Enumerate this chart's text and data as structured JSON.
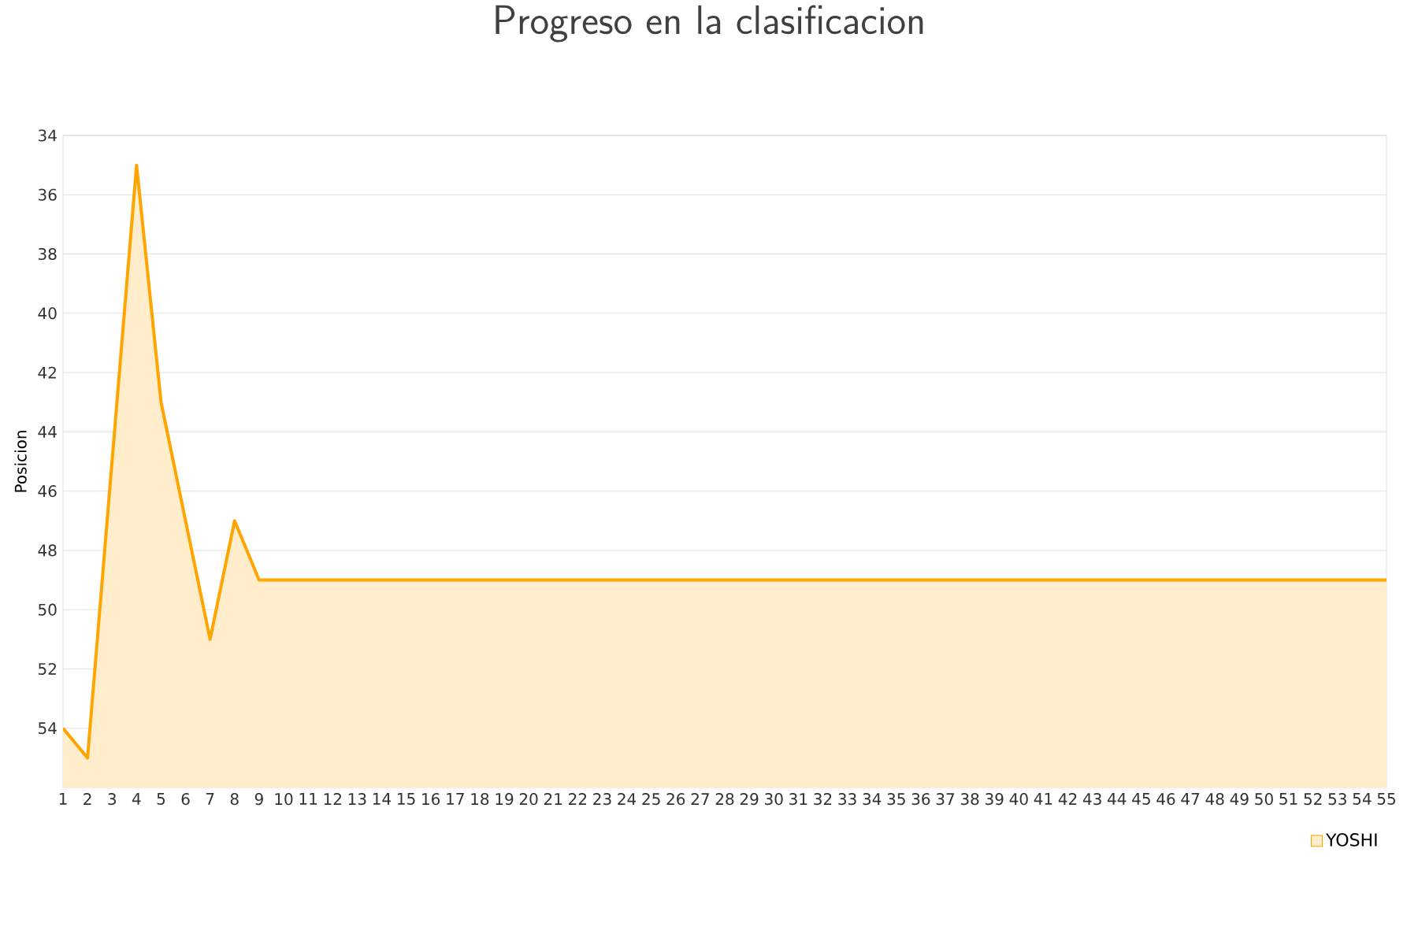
{
  "chart_data": {
    "type": "area",
    "title": "Progreso en la clasificacion",
    "ylabel": "Posicion",
    "categories": [
      "1",
      "2",
      "3",
      "4",
      "5",
      "6",
      "7",
      "8",
      "9",
      "10",
      "11",
      "12",
      "13",
      "14",
      "15",
      "16",
      "17",
      "18",
      "19",
      "20",
      "21",
      "22",
      "23",
      "24",
      "25",
      "26",
      "27",
      "28",
      "29",
      "30",
      "31",
      "32",
      "33",
      "34",
      "35",
      "36",
      "37",
      "38",
      "39",
      "40",
      "41",
      "42",
      "43",
      "44",
      "45",
      "46",
      "47",
      "48",
      "49",
      "50",
      "51",
      "52",
      "53",
      "54",
      "55"
    ],
    "series": [
      {
        "name": "YOSHI",
        "color": "#ffa500",
        "values": [
          54,
          55,
          45,
          35,
          43,
          47,
          51,
          47,
          49,
          49,
          49,
          49,
          49,
          49,
          49,
          49,
          49,
          49,
          49,
          49,
          49,
          49,
          49,
          49,
          49,
          49,
          49,
          49,
          49,
          49,
          49,
          49,
          49,
          49,
          49,
          49,
          49,
          49,
          49,
          49,
          49,
          49,
          49,
          49,
          49,
          49,
          49,
          49,
          49,
          49,
          49,
          49,
          49,
          49,
          49
        ]
      }
    ],
    "ylim": [
      56,
      34
    ],
    "yticks": [
      34,
      36,
      38,
      40,
      42,
      44,
      46,
      48,
      50,
      52,
      54
    ],
    "grid": "y",
    "legend": "bottom right",
    "marker": "none",
    "line_style": "solid"
  }
}
